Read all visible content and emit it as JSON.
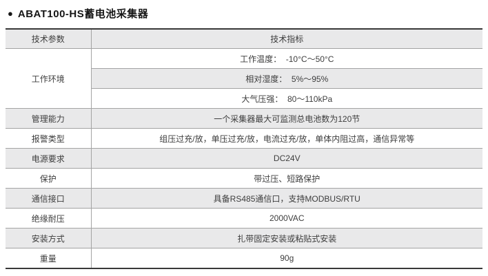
{
  "page": {
    "title_bullet": "●",
    "title": "ABAT100-HS蓄电池采集器"
  },
  "table": {
    "columns": {
      "param": "技术参数",
      "spec": "技术指标"
    },
    "environment": {
      "label": "工作环境",
      "items": [
        "工作温度：  -10°C～50°C",
        "相对湿度：  5%～95%",
        "大气压强：  80～110kPa"
      ]
    },
    "rows": [
      {
        "label": "管理能力",
        "value": "一个采集器最大可监测总电池数为120节"
      },
      {
        "label": "报警类型",
        "value": "组压过充/放，单压过充/放，电流过充/放，单体内阻过高，通信异常等"
      },
      {
        "label": "电源要求",
        "value": "DC24V"
      },
      {
        "label": "保护",
        "value": "带过压、短路保护"
      },
      {
        "label": "通信接口",
        "value": "具备RS485通信口，支持MODBUS/RTU"
      },
      {
        "label": "绝缘耐压",
        "value": "2000VAC"
      },
      {
        "label": "安装方式",
        "value": "扎带固定安装或粘贴式安装"
      },
      {
        "label": "重量",
        "value": "90g"
      }
    ]
  },
  "colors": {
    "row_alt_background": "#e9e9ea",
    "border_heavy": "#383838",
    "border_light": "#a3a3a3",
    "text": "#3d3d3d"
  }
}
